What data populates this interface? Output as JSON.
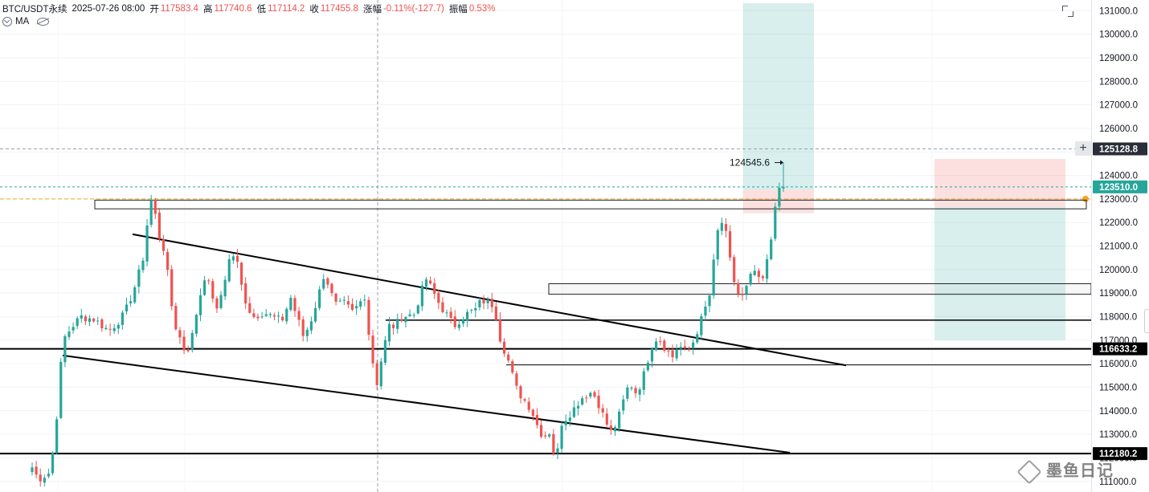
{
  "header": {
    "symbol": "BTC/USDT永续",
    "datetime": "2025-07-26 08:00",
    "open_label": "开",
    "open": "117583.4",
    "high_label": "高",
    "high": "117740.6",
    "low_label": "低",
    "low": "117114.2",
    "close_label": "收",
    "close": "117455.8",
    "change_label": "涨幅",
    "change": "-0.11%(-127.7)",
    "amp_label": "振幅",
    "amp": "0.53%"
  },
  "indicator": {
    "name": "MA"
  },
  "colors": {
    "up": "#26a69a",
    "down": "#ef5350",
    "text": "#131722",
    "axis_text": "#131722",
    "grid": "#f0f3fa"
  },
  "watermark": "墨鱼日记",
  "chart_data": {
    "type": "candlestick",
    "ylim": [
      110720,
      131180
    ],
    "y_ticks": [
      111000,
      112000,
      113000,
      114000,
      115000,
      116000,
      117000,
      118000,
      119000,
      120000,
      121000,
      122000,
      123000,
      124000,
      125000,
      126000,
      127000,
      128000,
      129000,
      130000,
      131000
    ],
    "y_tick_labels": [
      "111000.0",
      "112000.0",
      "113000.0",
      "114000.0",
      "115000.0",
      "116000.0",
      "117000.0",
      "118000.0",
      "119000.0",
      "120000.0",
      "121000.0",
      "122000.0",
      "123000.0",
      "124000.0",
      "125000.0",
      "126000.0",
      "127000.0",
      "128000.0",
      "129000.0",
      "130000.0",
      "131000.0"
    ],
    "price_tags": [
      {
        "value": 125128.8,
        "label": "125128.8",
        "color": "#2a2e39"
      },
      {
        "value": 123510.0,
        "label": "123510.0",
        "color": "#26a69a"
      },
      {
        "value": 116633.2,
        "label": "116633.2",
        "color": "#000000"
      },
      {
        "value": 112180,
        "label": "112180.2",
        "color": "#000000"
      }
    ],
    "annotations": [
      {
        "text": "124545.6",
        "value": 124545.6
      }
    ],
    "candle_count": 184,
    "anchors": [
      [
        0,
        111600
      ],
      [
        2,
        111100
      ],
      [
        6,
        111400
      ],
      [
        8,
        113800
      ],
      [
        10,
        117000
      ],
      [
        13,
        117600
      ],
      [
        16,
        118000
      ],
      [
        20,
        117900
      ],
      [
        25,
        117400
      ],
      [
        30,
        118100
      ],
      [
        34,
        119500
      ],
      [
        36,
        120500
      ],
      [
        38,
        122600
      ],
      [
        39,
        123100
      ],
      [
        41,
        121500
      ],
      [
        43,
        120800
      ],
      [
        44,
        119800
      ],
      [
        46,
        117800
      ],
      [
        48,
        117100
      ],
      [
        50,
        116400
      ],
      [
        52,
        117200
      ],
      [
        54,
        118600
      ],
      [
        56,
        119700
      ],
      [
        58,
        119200
      ],
      [
        60,
        118200
      ],
      [
        62,
        119300
      ],
      [
        64,
        120400
      ],
      [
        66,
        120700
      ],
      [
        68,
        119300
      ],
      [
        70,
        118400
      ],
      [
        72,
        118000
      ],
      [
        75,
        118200
      ],
      [
        78,
        118000
      ],
      [
        81,
        117800
      ],
      [
        84,
        118800
      ],
      [
        86,
        118000
      ],
      [
        88,
        117200
      ],
      [
        90,
        117600
      ],
      [
        93,
        118900
      ],
      [
        95,
        119900
      ],
      [
        97,
        119000
      ],
      [
        99,
        118400
      ],
      [
        101,
        118600
      ],
      [
        104,
        118200
      ],
      [
        106,
        118500
      ],
      [
        108,
        118900
      ],
      [
        110,
        116500
      ],
      [
        112,
        115200
      ],
      [
        114,
        116600
      ],
      [
        116,
        117600
      ],
      [
        118,
        117600
      ],
      [
        120,
        118000
      ],
      [
        124,
        118100
      ],
      [
        126,
        118900
      ],
      [
        128,
        119600
      ],
      [
        130,
        119100
      ],
      [
        132,
        118600
      ],
      [
        135,
        118000
      ],
      [
        137,
        117600
      ],
      [
        139,
        117900
      ],
      [
        141,
        118100
      ],
      [
        144,
        118300
      ],
      [
        146,
        118700
      ],
      [
        150,
        118500
      ],
      [
        152,
        117100
      ],
      [
        155,
        116000
      ],
      [
        157,
        115000
      ],
      [
        159,
        114600
      ],
      [
        162,
        114100
      ],
      [
        164,
        113400
      ],
      [
        166,
        112900
      ],
      [
        168,
        113100
      ],
      [
        169,
        112250
      ],
      [
        171,
        112300
      ],
      [
        172,
        113500
      ],
      [
        174,
        113800
      ],
      [
        176,
        114100
      ],
      [
        178,
        114500
      ],
      [
        180,
        114700
      ],
      [
        182,
        114800
      ],
      [
        184,
        114300
      ],
      [
        186,
        113600
      ],
      [
        188,
        113100
      ],
      [
        190,
        113500
      ],
      [
        192,
        114400
      ],
      [
        194,
        115200
      ],
      [
        196,
        114800
      ],
      [
        198,
        115200
      ],
      [
        200,
        116200
      ],
      [
        202,
        117100
      ],
      [
        204,
        117000
      ],
      [
        206,
        116600
      ],
      [
        208,
        116300
      ],
      [
        210,
        116800
      ],
      [
        212,
        116500
      ],
      [
        214,
        116700
      ],
      [
        216,
        117400
      ],
      [
        218,
        118100
      ],
      [
        220,
        118900
      ],
      [
        221,
        119700
      ],
      [
        222,
        121400
      ],
      [
        224,
        122000
      ],
      [
        225,
        121800
      ],
      [
        226,
        120800
      ],
      [
        228,
        119500
      ],
      [
        229,
        119000
      ],
      [
        231,
        118800
      ],
      [
        233,
        119600
      ],
      [
        235,
        120000
      ],
      [
        236,
        119500
      ],
      [
        237,
        119400
      ],
      [
        239,
        120500
      ],
      [
        240,
        121300
      ],
      [
        241,
        122700
      ],
      [
        242,
        123100
      ],
      [
        243,
        123400
      ],
      [
        244,
        123510
      ]
    ]
  }
}
